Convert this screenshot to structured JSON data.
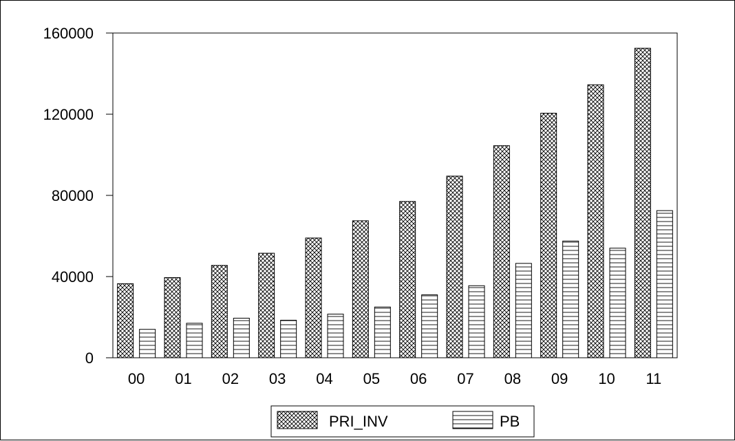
{
  "chart_data": {
    "type": "bar",
    "categories": [
      "00",
      "01",
      "02",
      "03",
      "04",
      "05",
      "06",
      "07",
      "08",
      "09",
      "10",
      "11"
    ],
    "series": [
      {
        "name": "PRI_INV",
        "pattern": "crosshatch",
        "values": [
          36500,
          39500,
          45500,
          51500,
          59000,
          67500,
          77000,
          89500,
          104500,
          120500,
          134500,
          152500
        ]
      },
      {
        "name": "PB",
        "pattern": "horizontal-lines",
        "values": [
          14000,
          17000,
          19500,
          18500,
          21500,
          25000,
          31000,
          35500,
          46500,
          57500,
          54000,
          72500
        ]
      }
    ],
    "ylim": [
      0,
      160000
    ],
    "yticks": [
      "0",
      "40000",
      "80000",
      "120000",
      "160000"
    ],
    "grid": false,
    "legend_position": "bottom-center",
    "colors": {
      "bar_fill": "#ffffff",
      "pattern_stroke": "#000000",
      "axis": "#000000"
    }
  }
}
